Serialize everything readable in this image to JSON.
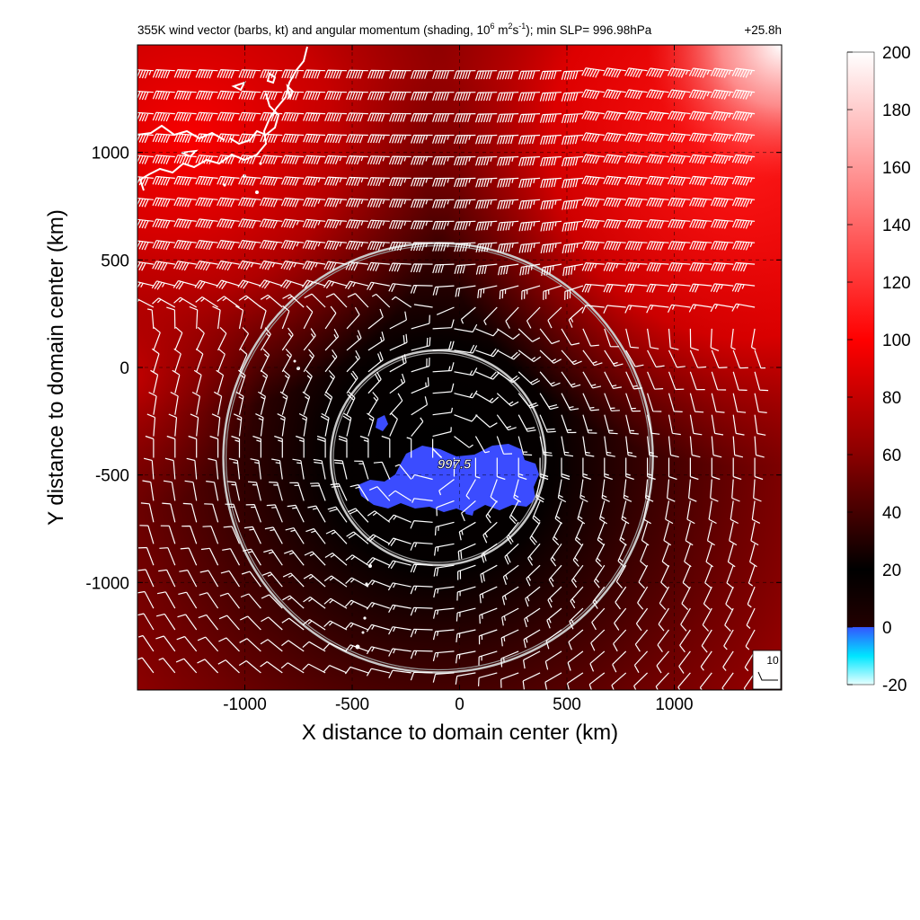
{
  "title": {
    "part1": "355K wind vector (barbs, kt) and angular momentum (shading, 10",
    "sup1": "6",
    "part2": " m",
    "sup2": "2",
    "part3": "s",
    "sup3": "-1",
    "part4": "); min SLP= 996.98hPa",
    "time": "+25.8h"
  },
  "chart_data": {
    "type": "heatmap",
    "xlabel": "X distance to domain center (km)",
    "ylabel": "Y distance to domain center (km)",
    "xlim": [
      -1500,
      1500
    ],
    "ylim": [
      -1500,
      1500
    ],
    "xticks": [
      -1000,
      -500,
      0,
      500,
      1000
    ],
    "yticks": [
      -1000,
      -500,
      0,
      500,
      1000
    ],
    "grid": true,
    "colorbar": {
      "range": [
        -20,
        200
      ],
      "ticks": [
        -20,
        0,
        20,
        40,
        60,
        80,
        100,
        120,
        140,
        160,
        180,
        200
      ],
      "colors": [
        {
          "value": -20,
          "color": "#e8ffff"
        },
        {
          "value": -10,
          "color": "#00e6ff"
        },
        {
          "value": 0,
          "color": "#3355ff"
        },
        {
          "value": 20,
          "color": "#000000"
        },
        {
          "value": 60,
          "color": "#8a0000"
        },
        {
          "value": 100,
          "color": "#ff0000"
        },
        {
          "value": 200,
          "color": "#ffffff"
        }
      ]
    },
    "storm_center": {
      "x": -100,
      "y": -420
    },
    "center_label": "997.5",
    "range_rings_km": [
      500,
      1000
    ],
    "reference_barb_label": "10",
    "series": [
      {
        "type": "heatmap",
        "field": "angular momentum",
        "units": "10^6 m^2 s^-1"
      },
      {
        "type": "barbs",
        "field": "355K wind",
        "units": "kt"
      }
    ]
  }
}
